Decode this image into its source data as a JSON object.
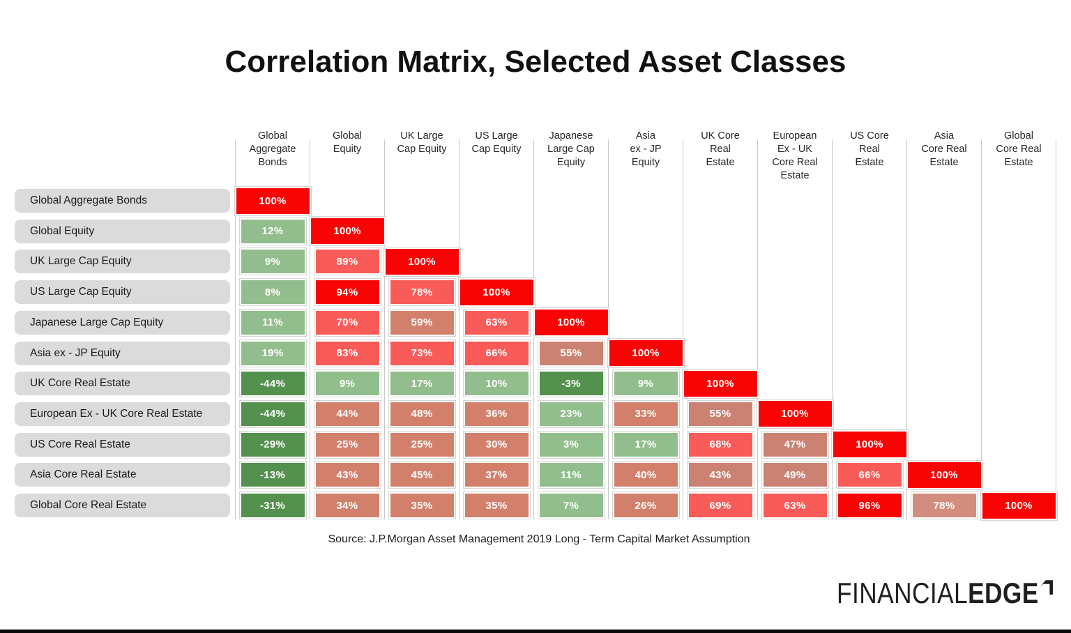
{
  "chart_data": {
    "type": "heatmap",
    "title": "Correlation Matrix, Selected Asset Classes",
    "source": "Source: J.P.Morgan Asset Management 2019 Long - Term Capital Market Assumption",
    "unit": "%",
    "legend_position": "none",
    "grid": "column-separators",
    "palette": {
      "bright_red": "#F90404",
      "salmon": "#F95B58",
      "muted_red": "#D2806C",
      "muted_dark": "#CB8273",
      "muted_light": "#D28D7F",
      "light_green": "#92BD8C",
      "dark_green": "#54914E"
    },
    "column_headers": [
      "Global\nAggregate\nBonds",
      "Global\nEquity",
      "UK Large\nCap Equity",
      "US Large\nCap Equity",
      "Japanese\nLarge Cap\nEquity",
      "Asia\nex - JP\nEquity",
      "UK Core\nReal\nEstate",
      "European\nEx - UK\nCore Real\nEstate",
      "US Core\nReal\nEstate",
      "Asia\nCore Real\nEstate",
      "Global\nCore Real\nEstate"
    ],
    "rows": [
      {
        "label": "Global Aggregate Bonds",
        "values": [
          100
        ],
        "colors": [
          "bright_red"
        ]
      },
      {
        "label": "Global Equity",
        "values": [
          12,
          100
        ],
        "colors": [
          "light_green",
          "bright_red"
        ]
      },
      {
        "label": "UK Large Cap Equity",
        "values": [
          9,
          89,
          100
        ],
        "colors": [
          "light_green",
          "salmon",
          "bright_red"
        ]
      },
      {
        "label": "US Large Cap Equity",
        "values": [
          8,
          94,
          78,
          100
        ],
        "colors": [
          "light_green",
          "bright_red",
          "salmon",
          "bright_red"
        ]
      },
      {
        "label": "Japanese Large Cap Equity",
        "values": [
          11,
          70,
          59,
          63,
          100
        ],
        "colors": [
          "light_green",
          "salmon",
          "muted_red",
          "salmon",
          "bright_red"
        ]
      },
      {
        "label": "Asia ex - JP Equity",
        "values": [
          19,
          83,
          73,
          66,
          55,
          100
        ],
        "colors": [
          "light_green",
          "salmon",
          "salmon",
          "salmon",
          "muted_dark",
          "bright_red"
        ]
      },
      {
        "label": "UK Core Real Estate",
        "values": [
          -44,
          9,
          17,
          10,
          -3,
          9,
          100
        ],
        "colors": [
          "dark_green",
          "light_green",
          "light_green",
          "light_green",
          "dark_green",
          "light_green",
          "bright_red"
        ]
      },
      {
        "label": "European Ex - UK Core Real Estate",
        "values": [
          -44,
          44,
          48,
          36,
          23,
          33,
          55,
          100
        ],
        "colors": [
          "dark_green",
          "muted_red",
          "muted_red",
          "muted_red",
          "light_green",
          "muted_red",
          "muted_dark",
          "bright_red"
        ]
      },
      {
        "label": "US Core Real Estate",
        "values": [
          -29,
          25,
          25,
          30,
          3,
          17,
          68,
          47,
          100
        ],
        "colors": [
          "dark_green",
          "muted_red",
          "muted_red",
          "muted_red",
          "light_green",
          "light_green",
          "salmon",
          "muted_dark",
          "bright_red"
        ]
      },
      {
        "label": "Asia Core Real Estate",
        "values": [
          -13,
          43,
          45,
          37,
          11,
          40,
          43,
          49,
          66,
          100
        ],
        "colors": [
          "dark_green",
          "muted_red",
          "muted_red",
          "muted_red",
          "light_green",
          "muted_red",
          "muted_dark",
          "muted_dark",
          "salmon",
          "bright_red"
        ]
      },
      {
        "label": "Global Core Real Estate",
        "values": [
          -31,
          34,
          35,
          35,
          7,
          26,
          69,
          63,
          96,
          78,
          100
        ],
        "colors": [
          "dark_green",
          "muted_red",
          "muted_red",
          "muted_red",
          "light_green",
          "muted_red",
          "salmon",
          "salmon",
          "bright_red",
          "muted_light",
          "bright_red"
        ]
      }
    ]
  },
  "logo": {
    "part1": "FINANCIAL",
    "part2": "EDGE"
  }
}
